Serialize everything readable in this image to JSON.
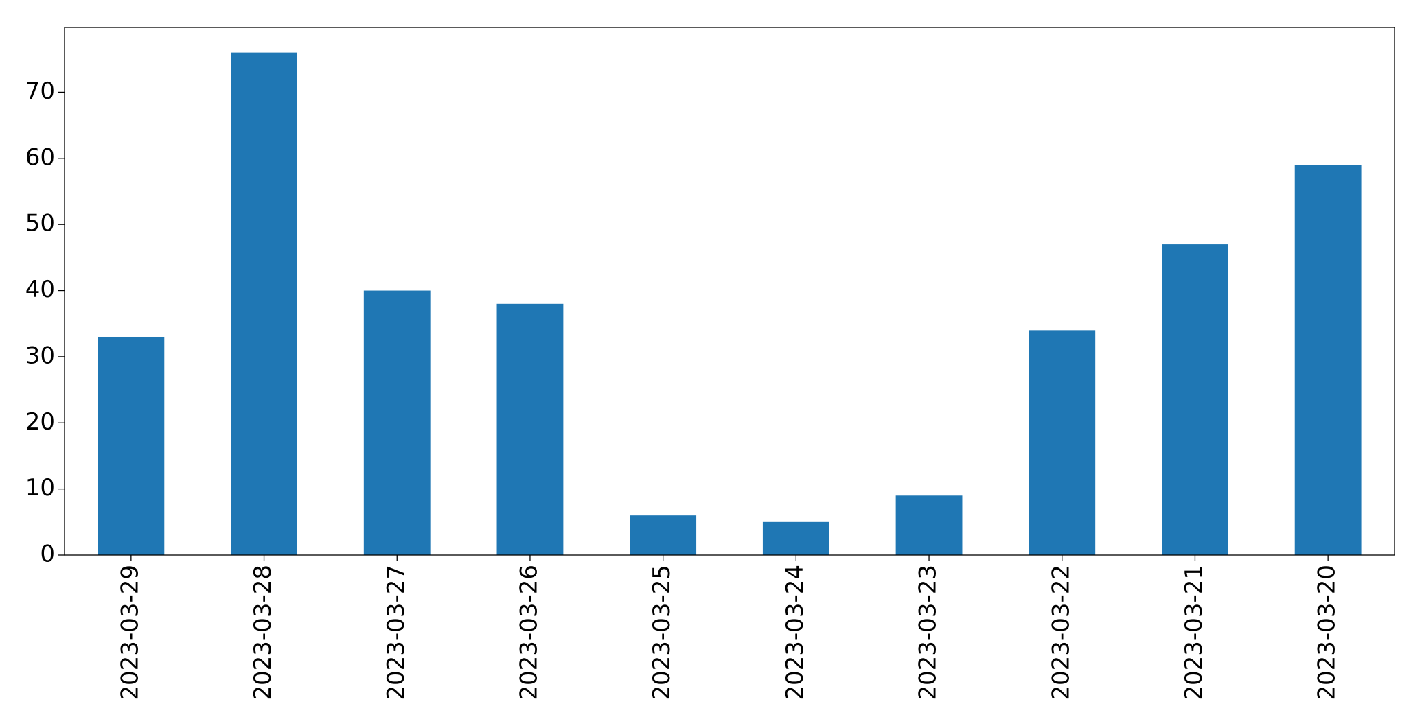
{
  "chart_data": {
    "type": "bar",
    "categories": [
      "2023-03-29",
      "2023-03-28",
      "2023-03-27",
      "2023-03-26",
      "2023-03-25",
      "2023-03-24",
      "2023-03-23",
      "2023-03-22",
      "2023-03-21",
      "2023-03-20"
    ],
    "values": [
      33,
      76,
      40,
      38,
      6,
      5,
      9,
      34,
      47,
      59
    ],
    "color": "#1f77b4",
    "ylim": [
      0,
      79.8
    ],
    "yticks": [
      0,
      10,
      20,
      30,
      40,
      50,
      60,
      70
    ],
    "grid": false
  }
}
